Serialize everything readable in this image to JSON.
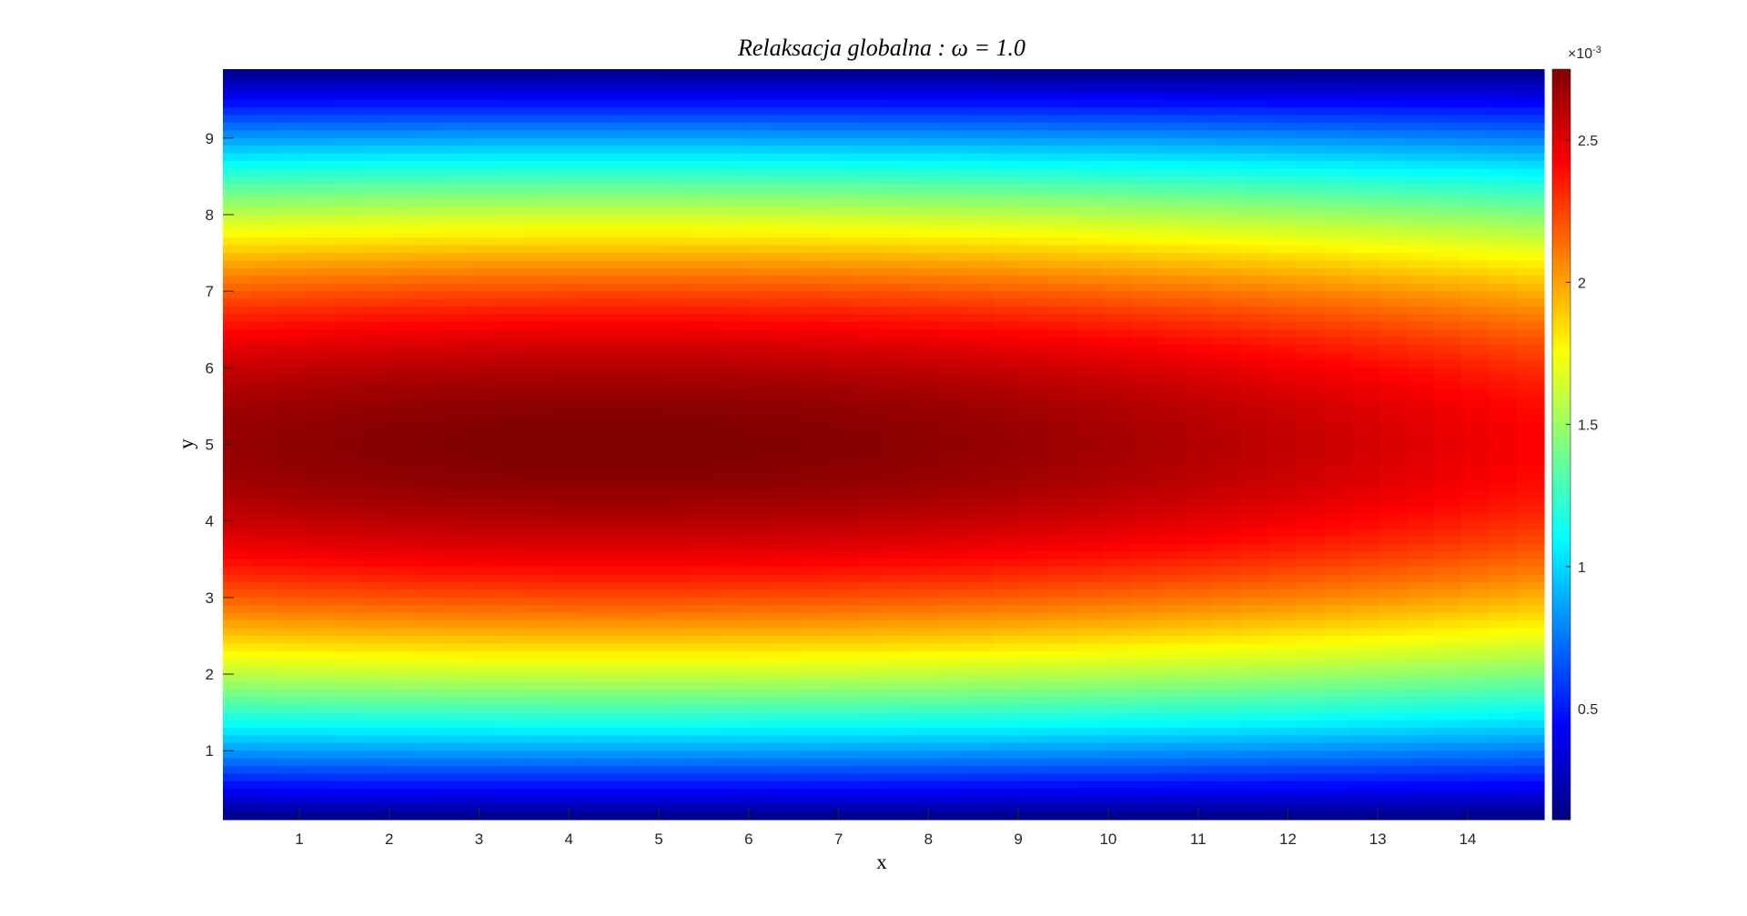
{
  "chart_data": {
    "type": "heatmap",
    "title": "Relaksacja  globalna  :  ω = 1.0",
    "xlabel": "x",
    "ylabel": "y",
    "xlim": [
      0.15,
      14.85
    ],
    "ylim": [
      0.1,
      9.9
    ],
    "x_ticks": [
      1,
      2,
      3,
      4,
      5,
      6,
      7,
      8,
      9,
      10,
      11,
      12,
      13,
      14
    ],
    "x_tick_labels": [
      "1",
      "2",
      "3",
      "4",
      "5",
      "6",
      "7",
      "8",
      "9",
      "10",
      "11",
      "12",
      "13",
      "14"
    ],
    "y_ticks": [
      1,
      2,
      3,
      4,
      5,
      6,
      7,
      8,
      9
    ],
    "y_tick_labels": [
      "1",
      "2",
      "3",
      "4",
      "5",
      "6",
      "7",
      "8",
      "9"
    ],
    "colormap": "jet",
    "color_range": [
      0.00011,
      0.00275
    ],
    "colorbar_ticks": [
      0.0005,
      0.001,
      0.0015,
      0.002,
      0.0025
    ],
    "colorbar_tick_labels": [
      "0.5",
      "1",
      "1.5",
      "2",
      "2.5"
    ],
    "colorbar_exponent_label": "×10",
    "colorbar_exponent_power": "-3",
    "field_description_values": {
      "peak_value": 0.00275,
      "min_value": 0.00011,
      "peak_y": 5.0,
      "peak_x": 4.5,
      "value_at_x_edge_center": 0.0024
    }
  }
}
